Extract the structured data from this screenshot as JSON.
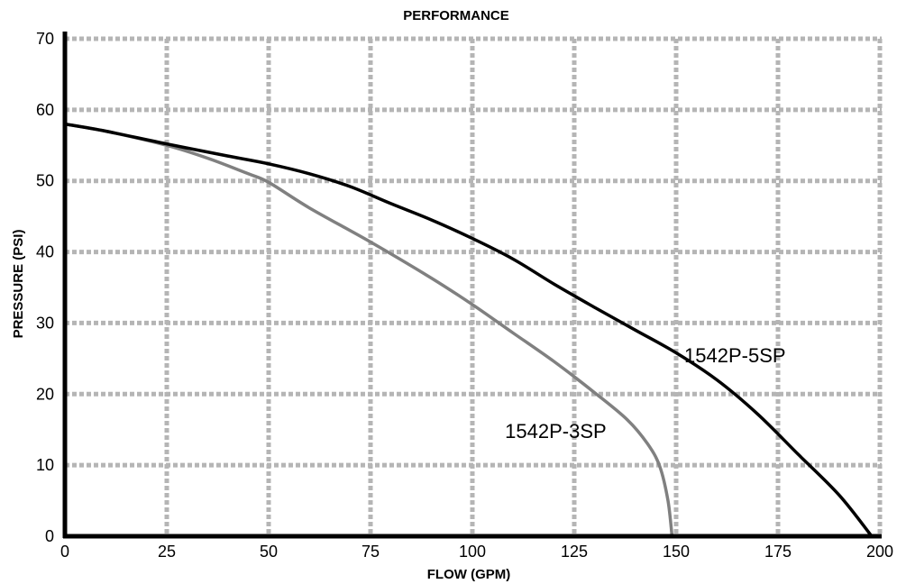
{
  "chart_data": {
    "type": "line",
    "title": "PERFORMANCE",
    "xlabel": "FLOW (GPM)",
    "ylabel": "PRESSURE (PSI)",
    "xlim": [
      0,
      200
    ],
    "ylim": [
      0,
      70
    ],
    "x_ticks": [
      0,
      25,
      50,
      75,
      100,
      125,
      150,
      175,
      200
    ],
    "y_ticks": [
      0,
      10,
      20,
      30,
      40,
      50,
      60,
      70
    ],
    "grid": true,
    "series": [
      {
        "name": "1542P-5SP",
        "color": "#000000",
        "points": [
          [
            0,
            58
          ],
          [
            10,
            57
          ],
          [
            25,
            55.2
          ],
          [
            40,
            53.5
          ],
          [
            50,
            52.4
          ],
          [
            60,
            51
          ],
          [
            70,
            49.2
          ],
          [
            80,
            46.8
          ],
          [
            90,
            44.5
          ],
          [
            100,
            41.9
          ],
          [
            110,
            39
          ],
          [
            120,
            35.5
          ],
          [
            130,
            32.2
          ],
          [
            140,
            29
          ],
          [
            150,
            25.8
          ],
          [
            160,
            22
          ],
          [
            170,
            17.2
          ],
          [
            180,
            11.5
          ],
          [
            190,
            5.8
          ],
          [
            198,
            0
          ]
        ]
      },
      {
        "name": "1542P-3SP",
        "color": "#808080",
        "points": [
          [
            0,
            58
          ],
          [
            10,
            57
          ],
          [
            25,
            55
          ],
          [
            35,
            53.2
          ],
          [
            45,
            51
          ],
          [
            50,
            49.8
          ],
          [
            60,
            46.2
          ],
          [
            75,
            41.4
          ],
          [
            90,
            36.3
          ],
          [
            100,
            32.6
          ],
          [
            110,
            28.6
          ],
          [
            120,
            24.6
          ],
          [
            130,
            20.2
          ],
          [
            138,
            16.4
          ],
          [
            143,
            13
          ],
          [
            146,
            9.8
          ],
          [
            148,
            5
          ],
          [
            149,
            0
          ]
        ]
      }
    ],
    "annotations": [
      {
        "text": "1542P-5SP",
        "x": 152,
        "y": 24.5
      },
      {
        "text": "1542P-3SP",
        "x": 108,
        "y": 13.8
      }
    ]
  }
}
